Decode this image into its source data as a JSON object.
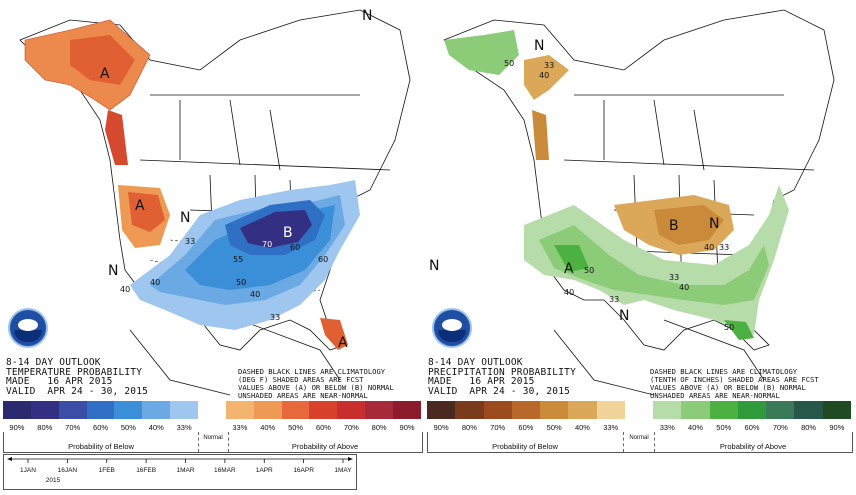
{
  "colors": {
    "below": [
      "#2b2a6e",
      "#332f83",
      "#3a4ea8",
      "#2f6fc4",
      "#3a8fd8",
      "#6aa9e4",
      "#9ec6ee"
    ],
    "above": [
      "#f2b46e",
      "#ee9a55",
      "#e7683a",
      "#d8412c",
      "#c82e2e",
      "#a52a3a",
      "#8c1b2c"
    ],
    "dry": [
      "#4a2a20",
      "#7a3a1c",
      "#9a4a1e",
      "#b8682a",
      "#c98a3a",
      "#dba85a",
      "#f0d49a"
    ],
    "wet": [
      "#b6dcaa",
      "#8ccc78",
      "#4cb140",
      "#2f9a3a",
      "#3a7a58",
      "#27574a",
      "#1f4a22"
    ]
  },
  "maps": {
    "temperature": {
      "title_lines": [
        "8-14 DAY OUTLOOK",
        "TEMPERATURE PROBABILITY",
        "MADE   16 APR 2015",
        "VALID  APR 24 - 30, 2015"
      ],
      "notes": [
        "DASHED BLACK LINES ARE CLIMATOLOGY",
        "(DEG F) SHADED AREAS ARE FCST",
        "VALUES ABOVE (A) OR BELOW (B) NORMAL",
        "UNSHADED AREAS ARE NEAR-NORMAL"
      ],
      "map_labels": [
        "A",
        "A",
        "B",
        "N",
        "N",
        "N",
        "N",
        "33",
        "33",
        "40",
        "50",
        "60",
        "70",
        "60",
        "55",
        "50",
        "40",
        "33",
        "40"
      ]
    },
    "precipitation": {
      "title_lines": [
        "8-14 DAY OUTLOOK",
        "PRECIPITATION PROBABILITY",
        "MADE   16 APR 2015",
        "VALID  APR 24 - 30, 2015"
      ],
      "notes": [
        "DASHED BLACK LINES ARE CLIMATOLOGY",
        "(TENTH OF INCHES) SHADED AREAS ARE FCST",
        "VALUES ABOVE (A) OR BELOW (B) NORMAL",
        "UNSHADED AREAS ARE NEAR-NORMAL"
      ],
      "map_labels": [
        "N",
        "A",
        "B",
        "N",
        "N",
        "N",
        "33",
        "40",
        "33",
        "40",
        "50",
        "40",
        "33",
        "40",
        "33",
        "50",
        "50"
      ]
    }
  },
  "legend": {
    "temp_ticks": [
      "90%",
      "80%",
      "70%",
      "60%",
      "50%",
      "40%",
      "33%",
      "33%",
      "40%",
      "50%",
      "60%",
      "70%",
      "80%",
      "90%"
    ],
    "precip_ticks": [
      "90%",
      "80%",
      "70%",
      "60%",
      "50%",
      "40%",
      "33%",
      "33%",
      "40%",
      "50%",
      "60%",
      "70%",
      "80%",
      "90%"
    ],
    "temp_below": "Probability of Below",
    "temp_above": "Probability of Above",
    "precip_below": "Probability of Below",
    "precip_above": "Probability of Above",
    "normal": "Normal"
  },
  "timeline": {
    "labels": [
      "1JAN",
      "16JAN",
      "1FEB",
      "16FEB",
      "1MAR",
      "16MAR",
      "1APR",
      "16APR",
      "1MAY"
    ],
    "year": "2015"
  },
  "logo_text": "NOAA"
}
